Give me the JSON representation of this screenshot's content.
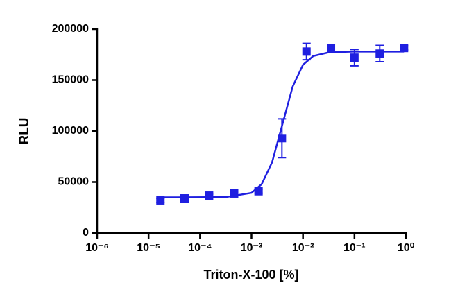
{
  "chart_data": {
    "type": "scatter",
    "xlabel": "Triton-X-100 [%]",
    "ylabel": "RLU",
    "xscale": "log",
    "xlim": [
      1e-06,
      1
    ],
    "xticks": [
      {
        "value": 1e-06,
        "label": "10⁻⁶"
      },
      {
        "value": 1e-05,
        "label": "10⁻⁵"
      },
      {
        "value": 0.0001,
        "label": "10⁻⁴"
      },
      {
        "value": 0.001,
        "label": "10⁻³"
      },
      {
        "value": 0.01,
        "label": "10⁻²"
      },
      {
        "value": 0.1,
        "label": "10⁻¹"
      },
      {
        "value": 1,
        "label": "10⁰"
      }
    ],
    "ylim": [
      0,
      200000
    ],
    "yticks": [
      0,
      50000,
      100000,
      150000,
      200000
    ],
    "color": "#1f1fe0",
    "points": {
      "x": [
        1.7e-05,
        5e-05,
        0.00015,
        0.00046,
        0.00137,
        0.0039,
        0.0117,
        0.035,
        0.1,
        0.31,
        0.92
      ],
      "values": [
        32000,
        34000,
        36700,
        38800,
        41000,
        93000,
        178000,
        181000,
        172000,
        176000,
        181500
      ],
      "errors": [
        2000,
        2500,
        1500,
        1500,
        2000,
        19000,
        8000,
        4000,
        8000,
        8000,
        2000
      ]
    },
    "curve": {
      "x": [
        1.7e-05,
        0.000316,
        0.001,
        0.00158,
        0.00251,
        0.00398,
        0.00631,
        0.01,
        0.0158,
        0.0316,
        0.1,
        0.92
      ],
      "values": [
        35000,
        35254,
        39400,
        48000,
        69400,
        106500,
        143700,
        165000,
        173600,
        177200,
        178000,
        178000
      ]
    }
  }
}
